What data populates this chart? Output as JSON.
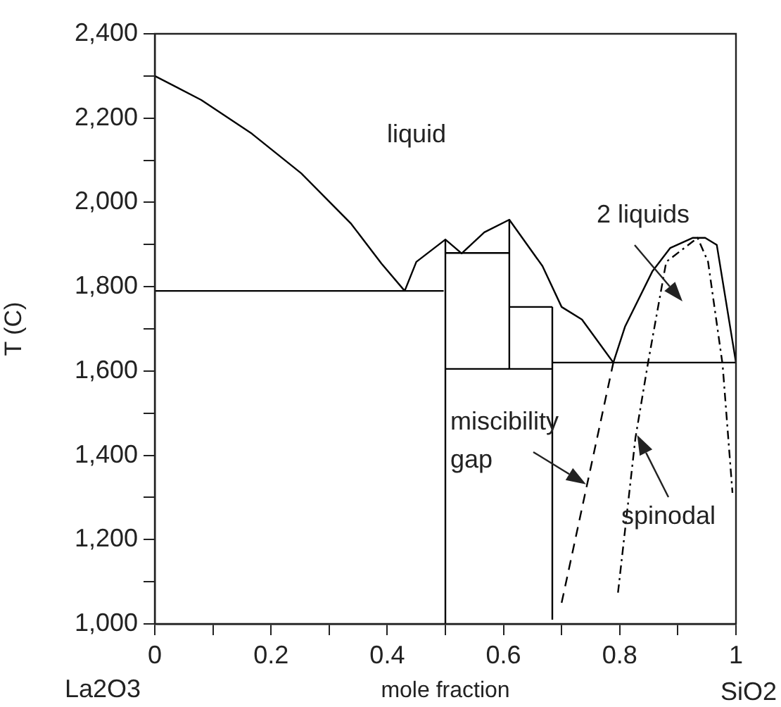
{
  "chart_data": {
    "type": "line",
    "xlabel": "mole fraction",
    "ylabel": "T (C)",
    "xlim": [
      0,
      1
    ],
    "ylim": [
      1000,
      2400
    ],
    "xticks": [
      0,
      {
        "value": 0.1,
        "label": null
      },
      0.2,
      {
        "value": 0.3,
        "label": null
      },
      0.4,
      {
        "value": 0.5,
        "label": null
      },
      0.6,
      {
        "value": 0.7,
        "label": null
      },
      0.8,
      {
        "value": 0.9,
        "label": null
      },
      1
    ],
    "yticks": [
      {
        "value": 1000,
        "label": "1,000"
      },
      {
        "value": 1100,
        "label": null
      },
      {
        "value": 1200,
        "label": "1,200"
      },
      {
        "value": 1300,
        "label": null
      },
      {
        "value": 1400,
        "label": "1,400"
      },
      {
        "value": 1500,
        "label": null
      },
      {
        "value": 1600,
        "label": "1,600"
      },
      {
        "value": 1700,
        "label": null
      },
      {
        "value": 1800,
        "label": "1,800"
      },
      {
        "value": 1900,
        "label": null
      },
      {
        "value": 2000,
        "label": "2,000"
      },
      {
        "value": 2100,
        "label": null
      },
      {
        "value": 2200,
        "label": "2,200"
      },
      {
        "value": 2300,
        "label": null
      },
      {
        "value": 2400,
        "label": "2,400"
      }
    ],
    "grid": false,
    "legend": false,
    "marker": "none",
    "series": [
      {
        "color": "#000000",
        "x": [
          0,
          0.08,
          0.167,
          0.252,
          0.338,
          0.39,
          0.43
        ],
        "values": [
          2300,
          2243,
          2163,
          2069,
          1949,
          1855,
          1790
        ]
      },
      {
        "color": "#000000",
        "x": [
          0,
          0.497
        ],
        "values": [
          1790,
          1790
        ]
      },
      {
        "color": "#000000",
        "x": [
          0.43,
          0.45,
          0.5,
          0.528,
          0.567,
          0.61,
          0.667,
          0.7,
          0.735,
          0.789
        ],
        "values": [
          1790,
          1859,
          1912,
          1879,
          1929,
          1959,
          1849,
          1752,
          1722,
          1620
        ]
      },
      {
        "color": "#000000",
        "x": [
          0.5,
          0.5
        ],
        "values": [
          1000,
          1912
        ]
      },
      {
        "color": "#000000",
        "x": [
          0.5,
          0.61
        ],
        "values": [
          1880,
          1880
        ]
      },
      {
        "color": "#000000",
        "x": [
          0.61,
          0.61
        ],
        "values": [
          1605,
          1959
        ]
      },
      {
        "color": "#000000",
        "x": [
          0.61,
          0.684
        ],
        "values": [
          1752,
          1752
        ]
      },
      {
        "color": "#000000",
        "x": [
          0.5,
          0.684
        ],
        "values": [
          1605,
          1605
        ]
      },
      {
        "color": "#000000",
        "x": [
          0.684,
          0.684
        ],
        "values": [
          1010,
          1752
        ]
      },
      {
        "color": "#000000",
        "x": [
          0.684,
          1
        ],
        "values": [
          1620,
          1620
        ]
      },
      {
        "color": "#000000",
        "x": [
          0.789,
          0.809,
          0.856,
          0.887,
          0.926,
          0.947,
          0.967,
          1
        ],
        "values": [
          1620,
          1705,
          1836,
          1892,
          1916,
          1916,
          1899,
          1620
        ]
      },
      {
        "color": "#000000",
        "line_style": "dashed",
        "x": [
          0.7,
          0.789
        ],
        "values": [
          1050,
          1620
        ]
      },
      {
        "color": "#000000",
        "line_style": "dotted",
        "x": [
          0.797,
          0.827,
          0.849,
          0.88,
          0.934,
          0.952,
          0.977,
          0.994
        ],
        "values": [
          1074,
          1441,
          1622,
          1859,
          1916,
          1859,
          1615,
          1311
        ]
      }
    ],
    "annotations": [
      "liquid",
      "2 liquids",
      {
        "text": "miscibility gap",
        "x": 0.742,
        "y": 1331
      },
      {
        "text": "spinodal",
        "x": 0.83,
        "y": 1448
      },
      "La2O3",
      "SiO2"
    ]
  }
}
